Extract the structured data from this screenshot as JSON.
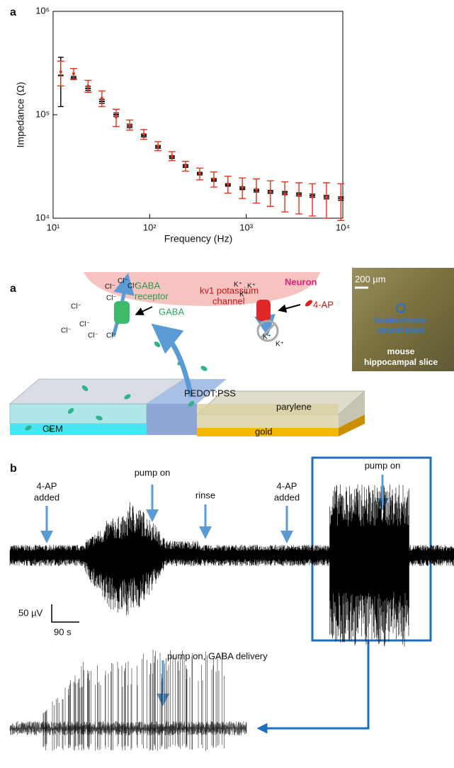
{
  "chart_data": {
    "type": "scatter",
    "panel_label": "a",
    "xlabel": "Frequency (Hz)",
    "ylabel": "Impedance (Ω)",
    "log_x": true,
    "log_y": true,
    "xlim": [
      10,
      10000
    ],
    "ylim": [
      10000,
      1000000
    ],
    "xticks": [
      {
        "value": 10,
        "label": "10¹"
      },
      {
        "value": 100,
        "label": "10²"
      },
      {
        "value": 1000,
        "label": "10³"
      },
      {
        "value": 10000,
        "label": "10⁴"
      }
    ],
    "yticks": [
      {
        "value": 10000,
        "label": "10⁴"
      },
      {
        "value": 100000,
        "label": "10⁵"
      },
      {
        "value": 1000000,
        "label": "10⁶"
      }
    ],
    "x": [
      12,
      16.3,
      23,
      32,
      45,
      62,
      87,
      122,
      170,
      235,
      330,
      462,
      646,
      912,
      1274,
      1780,
      2510,
      3515,
      4840,
      6770,
      9550
    ],
    "series": [
      {
        "color": "#000000",
        "values": [
          240000,
          227000,
          180000,
          135000,
          100000,
          78000,
          63000,
          49000,
          39000,
          32000,
          27000,
          23500,
          21000,
          19500,
          18500,
          18000,
          17500,
          17000,
          16500,
          16000,
          15500
        ],
        "errors": [
          120000,
          8000,
          8000,
          6000,
          4000,
          3000,
          2000,
          1500,
          1200,
          1000,
          800,
          700,
          600,
          600,
          600,
          600,
          600,
          600,
          600,
          600,
          600
        ]
      },
      {
        "color": "#e8321e",
        "values": [
          260000,
          250000,
          190000,
          145000,
          95000,
          80000,
          65000,
          50000,
          40000,
          32000,
          27000,
          24000,
          21500,
          20000,
          19000,
          18000,
          17000,
          16500,
          16000,
          16000,
          15500
        ],
        "errors": [
          70000,
          30000,
          25000,
          25000,
          18000,
          9000,
          7000,
          5000,
          4000,
          3500,
          3500,
          4000,
          4000,
          4500,
          5000,
          5000,
          5500,
          5500,
          5500,
          6000,
          6000
        ]
      }
    ]
  },
  "diagram": {
    "panel": "a",
    "neuron": "Neuron",
    "gaba_receptor": [
      "GABA",
      "receptor"
    ],
    "kv1_channel": [
      "kv1 potassium",
      "channel"
    ],
    "chloride": [
      "Cl⁻",
      "Cl⁻",
      "Cl⁻",
      "Cl⁻",
      "Cl⁻",
      "Cl⁻",
      "Cl⁻",
      "Cl⁻",
      "Cl⁻"
    ],
    "potassium": [
      "K⁺",
      "K⁺",
      "K⁺",
      "K⁺",
      "K⁺"
    ],
    "gaba": "GABA",
    "blocker": "4-AP",
    "pedot": "PEDOT:PSS",
    "parylene": "parylene",
    "cem": "CEM",
    "gold": "gold",
    "scale": "200 µm",
    "pixel": [
      "bioelectronic",
      "neural pixel"
    ],
    "slice": [
      "mouse",
      "hippocampal slice"
    ]
  },
  "recording": {
    "panel": "b",
    "events": [
      [
        "4-AP",
        "added"
      ],
      [
        "pump on"
      ],
      [
        "rinse"
      ],
      [
        "4-AP",
        "added"
      ],
      [
        "pump on"
      ]
    ],
    "scale_voltage": "50 µV",
    "scale_time": "90 s",
    "inset_event": "pump on, GABA delivery"
  }
}
